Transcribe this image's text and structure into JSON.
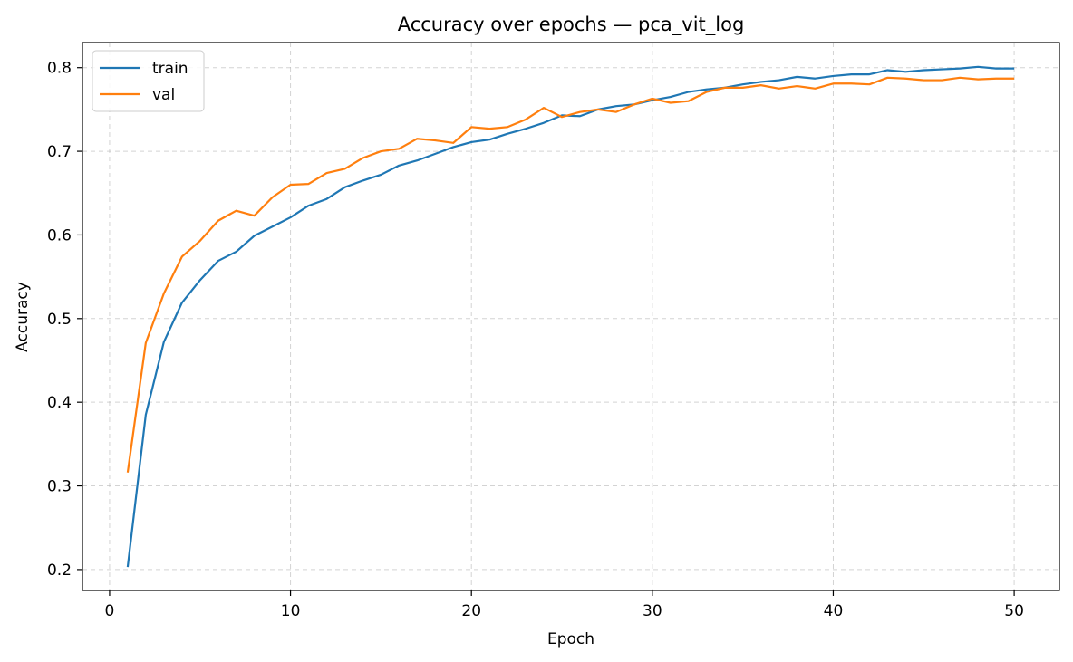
{
  "chart_data": {
    "type": "line",
    "title": "Accuracy over epochs — pca_vit_log",
    "xlabel": "Epoch",
    "ylabel": "Accuracy",
    "xlim": [
      -1.5,
      52.5
    ],
    "ylim": [
      0.175,
      0.83
    ],
    "xticks": [
      0,
      10,
      20,
      30,
      40,
      50
    ],
    "yticks": [
      0.2,
      0.3,
      0.4,
      0.5,
      0.6,
      0.7,
      0.8
    ],
    "grid": true,
    "legend_position": "top-left",
    "x": [
      1,
      2,
      3,
      4,
      5,
      6,
      7,
      8,
      9,
      10,
      11,
      12,
      13,
      14,
      15,
      16,
      17,
      18,
      19,
      20,
      21,
      22,
      23,
      24,
      25,
      26,
      27,
      28,
      29,
      30,
      31,
      32,
      33,
      34,
      35,
      36,
      37,
      38,
      39,
      40,
      41,
      42,
      43,
      44,
      45,
      46,
      47,
      48,
      49,
      50
    ],
    "series": [
      {
        "name": "train",
        "color": "#1f77b4",
        "values": [
          0.203,
          0.385,
          0.472,
          0.519,
          0.546,
          0.569,
          0.58,
          0.599,
          0.61,
          0.621,
          0.635,
          0.643,
          0.657,
          0.665,
          0.672,
          0.683,
          0.689,
          0.697,
          0.705,
          0.711,
          0.714,
          0.721,
          0.727,
          0.734,
          0.743,
          0.742,
          0.75,
          0.754,
          0.756,
          0.761,
          0.765,
          0.771,
          0.774,
          0.776,
          0.78,
          0.783,
          0.785,
          0.789,
          0.787,
          0.79,
          0.792,
          0.792,
          0.797,
          0.795,
          0.797,
          0.798,
          0.799,
          0.801,
          0.799,
          0.799
        ]
      },
      {
        "name": "val",
        "color": "#ff7f0e",
        "values": [
          0.316,
          0.471,
          0.53,
          0.574,
          0.593,
          0.617,
          0.629,
          0.623,
          0.645,
          0.66,
          0.661,
          0.674,
          0.679,
          0.692,
          0.7,
          0.703,
          0.715,
          0.713,
          0.71,
          0.729,
          0.727,
          0.729,
          0.738,
          0.752,
          0.741,
          0.747,
          0.75,
          0.747,
          0.756,
          0.763,
          0.758,
          0.76,
          0.771,
          0.776,
          0.776,
          0.779,
          0.775,
          0.778,
          0.775,
          0.781,
          0.781,
          0.78,
          0.788,
          0.787,
          0.785,
          0.785,
          0.788,
          0.786,
          0.787,
          0.787
        ]
      }
    ]
  }
}
